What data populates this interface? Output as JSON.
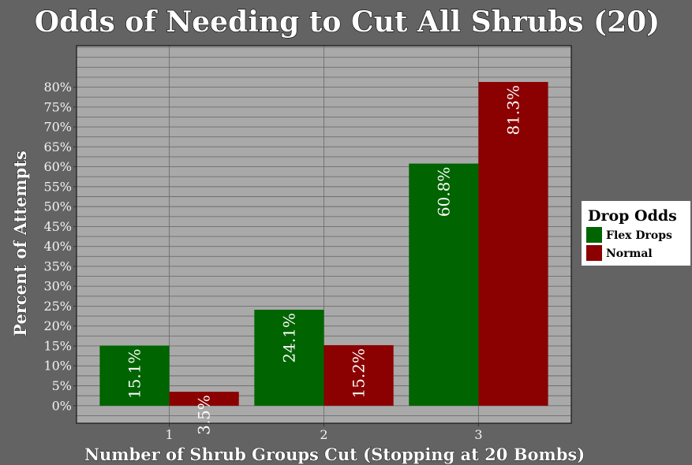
{
  "chart_data": {
    "type": "bar",
    "title": "Odds of Needing to Cut All Shrubs (20)",
    "xlabel": "Number of Shrub Groups Cut (Stopping at 20 Bombs)",
    "ylabel": "Percent of Attempts",
    "categories": [
      "1",
      "2",
      "3"
    ],
    "series": [
      {
        "name": "Flex Drops",
        "color": "#006400",
        "values": [
          15.1,
          24.1,
          60.8
        ],
        "labels": [
          "15.1%",
          "24.1%",
          "60.8%"
        ]
      },
      {
        "name": "Normal",
        "color": "#8b0000",
        "values": [
          3.5,
          15.2,
          81.3
        ],
        "labels": [
          "3.5%",
          "15.2%",
          "81.3%"
        ]
      }
    ],
    "yticks": [
      0,
      5,
      10,
      15,
      20,
      25,
      30,
      35,
      40,
      45,
      50,
      55,
      60,
      65,
      70,
      75,
      80
    ],
    "ytick_labels": [
      "0%",
      "5%",
      "10%",
      "15%",
      "20%",
      "25%",
      "30%",
      "35%",
      "40%",
      "45%",
      "50%",
      "55%",
      "60%",
      "65%",
      "70%",
      "75%",
      "80%"
    ],
    "ylim": [
      -4.4,
      90.4
    ],
    "minor_grid_step": 2.5,
    "grid": true,
    "legend": {
      "title": "Drop Odds",
      "position": "right"
    },
    "colors": {
      "background": "#636363",
      "panel": "#a9a9a9",
      "grid": "#6e6e6e"
    }
  }
}
